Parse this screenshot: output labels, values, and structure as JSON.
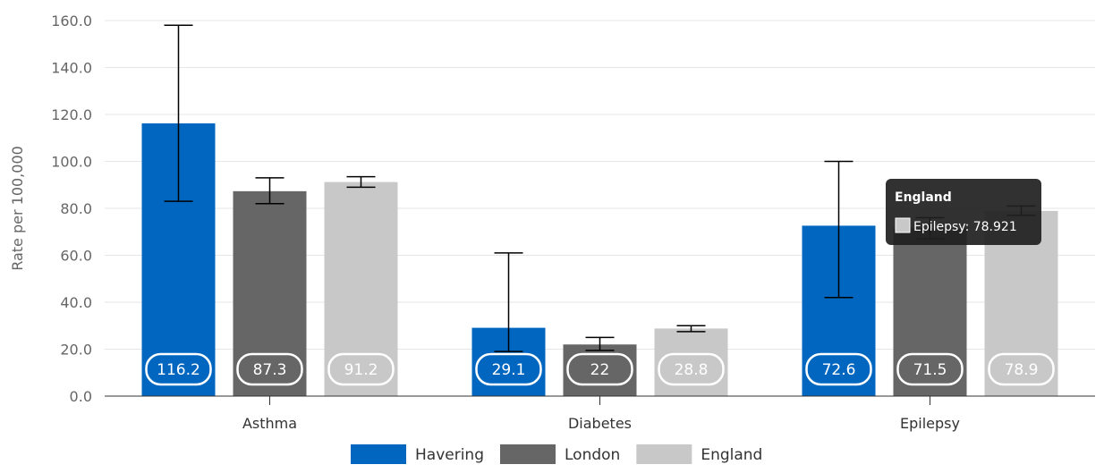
{
  "chart_data": {
    "type": "bar",
    "title": "",
    "xlabel": "",
    "ylabel": "Rate per 100,000",
    "ylim": [
      0,
      160
    ],
    "yticks": [
      "0.0",
      "20.0",
      "40.0",
      "60.0",
      "80.0",
      "100.0",
      "120.0",
      "140.0",
      "160.0"
    ],
    "categories": [
      "Asthma",
      "Diabetes",
      "Epilepsy"
    ],
    "grid": true,
    "legend_position": "bottom-center",
    "series": [
      {
        "name": "Havering",
        "color": "#0066bf",
        "values": [
          116.2,
          29.1,
          72.6
        ],
        "labels": [
          "116.2",
          "29.1",
          "72.6"
        ],
        "error_low": [
          83,
          19,
          42
        ],
        "error_high": [
          158,
          61,
          100
        ]
      },
      {
        "name": "London",
        "color": "#666666",
        "values": [
          87.3,
          22,
          71.5
        ],
        "labels": [
          "87.3",
          "22",
          "71.5"
        ],
        "error_low": [
          82,
          19.5,
          67
        ],
        "error_high": [
          93,
          25,
          76
        ]
      },
      {
        "name": "England",
        "color": "#c8c8c8",
        "values": [
          91.2,
          28.8,
          78.9
        ],
        "labels": [
          "91.2",
          "28.8",
          "78.9"
        ],
        "error_low": [
          89,
          27.5,
          77
        ],
        "error_high": [
          93.5,
          30,
          81
        ]
      }
    ],
    "tooltip": {
      "title": "England",
      "text": "Epilepsy: 78.921",
      "swatch_color": "#c8c8c8",
      "category": "Epilepsy",
      "series": "England"
    }
  }
}
